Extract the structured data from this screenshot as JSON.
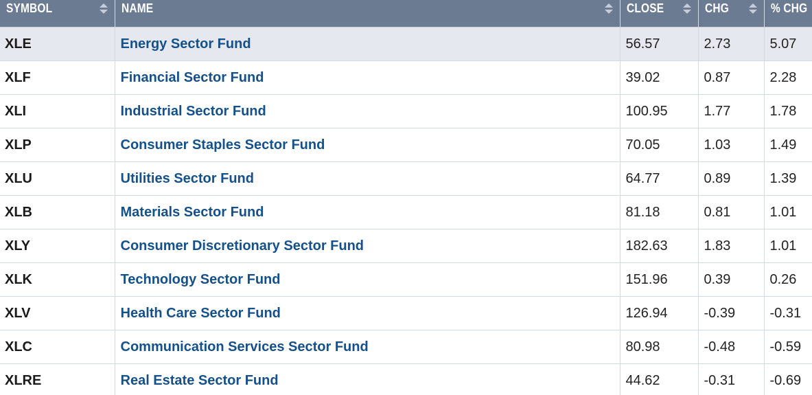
{
  "columns": {
    "symbol": "SYMBOL",
    "name": "NAME",
    "close": "CLOSE",
    "chg": "CHG",
    "pct_chg": "% CHG"
  },
  "rows": [
    {
      "symbol": "XLE",
      "name": "Energy Sector Fund",
      "close": "56.57",
      "chg": "2.73",
      "pct_chg": "5.07"
    },
    {
      "symbol": "XLF",
      "name": "Financial Sector Fund",
      "close": "39.02",
      "chg": "0.87",
      "pct_chg": "2.28"
    },
    {
      "symbol": "XLI",
      "name": "Industrial Sector Fund",
      "close": "100.95",
      "chg": "1.77",
      "pct_chg": "1.78"
    },
    {
      "symbol": "XLP",
      "name": "Consumer Staples Sector Fund",
      "close": "70.05",
      "chg": "1.03",
      "pct_chg": "1.49"
    },
    {
      "symbol": "XLU",
      "name": "Utilities Sector Fund",
      "close": "64.77",
      "chg": "0.89",
      "pct_chg": "1.39"
    },
    {
      "symbol": "XLB",
      "name": "Materials Sector Fund",
      "close": "81.18",
      "chg": "0.81",
      "pct_chg": "1.01"
    },
    {
      "symbol": "XLY",
      "name": "Consumer Discretionary Sector Fund",
      "close": "182.63",
      "chg": "1.83",
      "pct_chg": "1.01"
    },
    {
      "symbol": "XLK",
      "name": "Technology Sector Fund",
      "close": "151.96",
      "chg": "0.39",
      "pct_chg": "0.26"
    },
    {
      "symbol": "XLV",
      "name": "Health Care Sector Fund",
      "close": "126.94",
      "chg": "-0.39",
      "pct_chg": "-0.31"
    },
    {
      "symbol": "XLC",
      "name": "Communication Services Sector Fund",
      "close": "80.98",
      "chg": "-0.48",
      "pct_chg": "-0.59"
    },
    {
      "symbol": "XLRE",
      "name": "Real Estate Sector Fund",
      "close": "44.62",
      "chg": "-0.31",
      "pct_chg": "-0.69"
    }
  ],
  "highlighted_row": 0,
  "colors": {
    "header_bg": "#6b7b92",
    "row_highlight": "#e5e9ef",
    "link": "#14508a"
  }
}
